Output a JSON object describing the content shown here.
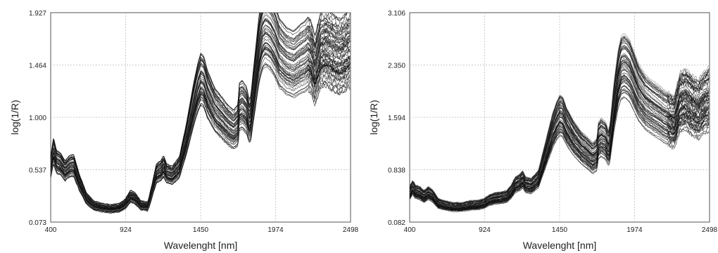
{
  "chart_data": [
    {
      "type": "line",
      "title": "",
      "xlabel": "Wavelenght [nm]",
      "ylabel": "log(1/R)",
      "xlim": [
        400,
        2498
      ],
      "ylim": [
        0.073,
        1.927
      ],
      "x_ticks": [
        "400",
        "924",
        "1450",
        "1974",
        "2498"
      ],
      "y_ticks": [
        "0.073",
        "0.537",
        "1.000",
        "1.464",
        "1.927"
      ],
      "grid": true,
      "legend": "none",
      "series_count_approx": 60,
      "representative_spectrum": {
        "x": [
          400,
          420,
          440,
          470,
          500,
          530,
          560,
          600,
          650,
          700,
          760,
          820,
          880,
          920,
          960,
          990,
          1030,
          1080,
          1110,
          1140,
          1170,
          1190,
          1210,
          1250,
          1300,
          1350,
          1400,
          1430,
          1450,
          1470,
          1500,
          1550,
          1600,
          1640,
          1680,
          1710,
          1720,
          1740,
          1770,
          1790,
          1800,
          1830,
          1860,
          1880,
          1900,
          1920,
          1940,
          1970,
          2000,
          2050,
          2100,
          2150,
          2180,
          2200,
          2220,
          2250,
          2260,
          2290,
          2330,
          2380,
          2420,
          2460,
          2498
        ],
        "y": [
          0.55,
          0.7,
          0.6,
          0.58,
          0.52,
          0.56,
          0.57,
          0.42,
          0.28,
          0.22,
          0.2,
          0.19,
          0.2,
          0.23,
          0.3,
          0.28,
          0.22,
          0.21,
          0.35,
          0.5,
          0.52,
          0.56,
          0.5,
          0.48,
          0.55,
          0.8,
          1.1,
          1.25,
          1.32,
          1.3,
          1.18,
          1.05,
          0.98,
          0.92,
          0.88,
          0.92,
          1.08,
          1.1,
          1.05,
          0.95,
          0.98,
          1.3,
          1.6,
          1.72,
          1.76,
          1.75,
          1.72,
          1.65,
          1.55,
          1.48,
          1.45,
          1.5,
          1.52,
          1.55,
          1.52,
          1.4,
          1.45,
          1.58,
          1.6,
          1.55,
          1.52,
          1.55,
          1.6
        ]
      }
    },
    {
      "type": "line",
      "title": "",
      "xlabel": "Wavelenght [nm]",
      "ylabel": "log(1/R)",
      "xlim": [
        400,
        2498
      ],
      "ylim": [
        0.082,
        3.106
      ],
      "x_ticks": [
        "400",
        "924",
        "1450",
        "1974",
        "2498"
      ],
      "y_ticks": [
        "0.082",
        "0.838",
        "1.594",
        "2.350",
        "3.106"
      ],
      "grid": true,
      "legend": "none",
      "series_count_approx": 60,
      "representative_spectrum": {
        "x": [
          400,
          420,
          440,
          470,
          500,
          530,
          560,
          600,
          650,
          700,
          760,
          820,
          880,
          920,
          960,
          990,
          1030,
          1080,
          1110,
          1140,
          1170,
          1190,
          1210,
          1250,
          1300,
          1350,
          1400,
          1430,
          1450,
          1470,
          1500,
          1550,
          1600,
          1640,
          1680,
          1710,
          1720,
          1740,
          1770,
          1790,
          1800,
          1830,
          1860,
          1880,
          1900,
          1920,
          1940,
          1970,
          2000,
          2050,
          2100,
          2150,
          2180,
          2200,
          2220,
          2250,
          2260,
          2290,
          2330,
          2380,
          2420,
          2460,
          2498
        ],
        "y": [
          0.5,
          0.58,
          0.52,
          0.5,
          0.45,
          0.5,
          0.46,
          0.35,
          0.32,
          0.3,
          0.3,
          0.32,
          0.33,
          0.35,
          0.4,
          0.42,
          0.43,
          0.45,
          0.52,
          0.62,
          0.65,
          0.7,
          0.62,
          0.6,
          0.7,
          1.05,
          1.4,
          1.55,
          1.62,
          1.6,
          1.45,
          1.28,
          1.15,
          1.08,
          1.0,
          1.05,
          1.25,
          1.3,
          1.25,
          1.15,
          1.2,
          1.75,
          2.15,
          2.3,
          2.33,
          2.3,
          2.25,
          2.1,
          1.95,
          1.8,
          1.72,
          1.65,
          1.6,
          1.58,
          1.55,
          1.52,
          1.58,
          1.8,
          1.85,
          1.75,
          1.7,
          1.8,
          1.85
        ]
      }
    }
  ]
}
